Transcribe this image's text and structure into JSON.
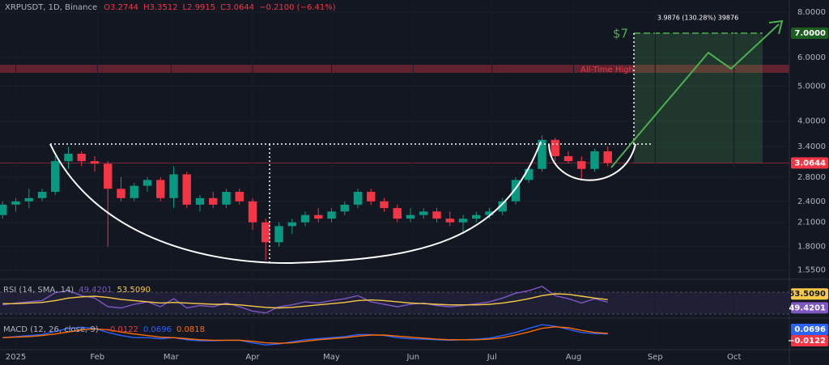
{
  "chart_data": [
    {
      "type": "candlestick",
      "title": "XRPUSDT, 1D, Binance",
      "ohlc_legend": [
        "O3.2744",
        "H3.3512",
        "L2.9915",
        "C3.0644",
        "−0.2100 (−6.41%)"
      ],
      "x": [
        -5,
        0,
        5,
        10,
        15,
        20,
        25,
        30,
        35,
        40,
        45,
        50,
        55,
        60,
        65,
        70,
        75,
        80,
        85,
        90,
        95,
        100,
        105,
        110,
        115,
        120,
        125,
        130,
        135,
        140,
        145,
        150,
        155,
        160,
        165,
        170,
        175,
        180,
        185,
        190,
        195,
        200,
        205,
        210,
        215,
        220,
        225
      ],
      "open": [
        2.2,
        2.35,
        2.4,
        2.45,
        2.55,
        3.1,
        3.25,
        3.1,
        3.05,
        2.6,
        2.45,
        2.65,
        2.75,
        2.45,
        2.85,
        2.35,
        2.45,
        2.35,
        2.55,
        2.4,
        2.1,
        1.85,
        2.05,
        2.1,
        2.2,
        2.15,
        2.25,
        2.35,
        2.55,
        2.4,
        2.3,
        2.15,
        2.2,
        2.25,
        2.15,
        2.1,
        2.15,
        2.2,
        2.25,
        2.4,
        2.75,
        2.95,
        3.55,
        3.2,
        3.1,
        2.95,
        3.3
      ],
      "high": [
        2.4,
        2.45,
        2.6,
        2.6,
        3.2,
        3.4,
        3.3,
        3.2,
        3.1,
        2.8,
        2.7,
        2.8,
        2.8,
        3.0,
        2.9,
        2.5,
        2.55,
        2.6,
        2.6,
        2.45,
        2.15,
        2.1,
        2.15,
        2.25,
        2.3,
        2.3,
        2.4,
        2.6,
        2.6,
        2.45,
        2.35,
        2.3,
        2.3,
        2.3,
        2.25,
        2.2,
        2.25,
        2.3,
        2.45,
        2.8,
        3.0,
        3.65,
        3.6,
        3.3,
        3.2,
        3.35,
        3.4
      ],
      "low": [
        2.15,
        2.25,
        2.3,
        2.4,
        2.5,
        2.95,
        3.0,
        2.9,
        1.8,
        2.4,
        2.4,
        2.55,
        2.4,
        2.3,
        2.3,
        2.25,
        2.3,
        2.3,
        2.35,
        2.0,
        1.65,
        1.8,
        1.95,
        2.05,
        2.1,
        2.1,
        2.2,
        2.3,
        2.35,
        2.25,
        2.1,
        2.1,
        2.15,
        2.1,
        2.05,
        1.95,
        2.1,
        2.15,
        2.2,
        2.35,
        2.7,
        2.9,
        3.1,
        3.05,
        2.75,
        2.9,
        3.0
      ],
      "close": [
        2.35,
        2.4,
        2.45,
        2.55,
        3.1,
        3.25,
        3.1,
        3.05,
        2.6,
        2.45,
        2.65,
        2.75,
        2.45,
        2.85,
        2.35,
        2.45,
        2.35,
        2.55,
        2.4,
        2.1,
        1.85,
        2.05,
        2.1,
        2.2,
        2.15,
        2.25,
        2.35,
        2.55,
        2.4,
        2.3,
        2.15,
        2.2,
        2.25,
        2.15,
        2.1,
        2.15,
        2.2,
        2.25,
        2.4,
        2.75,
        2.95,
        3.55,
        3.2,
        3.1,
        2.95,
        3.3,
        3.0644
      ],
      "up_color": "#089981",
      "down_color": "#f23645",
      "log_scale": true,
      "xlim": [
        -6,
        294
      ],
      "ylim": [
        1.5,
        8.3
      ],
      "yticks": [
        {
          "value": 8,
          "label": "8.0000"
        },
        {
          "value": 6,
          "label": "6.0000"
        },
        {
          "value": 5,
          "label": "5.0000"
        },
        {
          "value": 4,
          "label": "4.0000"
        },
        {
          "value": 3.4,
          "label": "3.4000"
        },
        {
          "value": 2.8,
          "label": "2.8000"
        },
        {
          "value": 2.4,
          "label": "2.4000"
        },
        {
          "value": 2.1,
          "label": "2.1000"
        },
        {
          "value": 1.8,
          "label": "1.8000"
        },
        {
          "value": 1.55,
          "label": "1.5500"
        }
      ],
      "last_price": {
        "value": 3.0644,
        "label": "3.0644"
      },
      "target": {
        "value": 7,
        "label": "7.0000"
      },
      "annotations": [
        "$7",
        "All-Time High",
        "3.9876 (130.28%) 39876"
      ]
    },
    {
      "type": "line",
      "title": "RSI (14, SMA, 14)",
      "series": [
        {
          "color": "#7e57c2",
          "last_label": "49.4201",
          "values": [
            45,
            48,
            50,
            52,
            65,
            68,
            60,
            56,
            42,
            40,
            46,
            50,
            42,
            55,
            40,
            44,
            42,
            48,
            42,
            35,
            32,
            42,
            45,
            50,
            48,
            52,
            55,
            60,
            50,
            46,
            42,
            46,
            48,
            44,
            42,
            44,
            47,
            50,
            56,
            64,
            68,
            75,
            60,
            55,
            48,
            55,
            49.4201
          ]
        },
        {
          "color": "#f7c948",
          "last_label": "53.5090",
          "values": [
            47,
            47,
            48,
            49,
            52,
            56,
            58,
            59,
            57,
            54,
            52,
            50,
            48,
            49,
            48,
            47,
            46,
            46,
            45,
            43,
            41,
            40,
            41,
            43,
            45,
            47,
            49,
            52,
            53,
            52,
            50,
            48,
            47,
            46,
            45,
            45,
            45,
            46,
            48,
            51,
            55,
            60,
            63,
            62,
            59,
            56,
            53.509
          ]
        }
      ],
      "ylim": [
        25,
        80
      ]
    },
    {
      "type": "line",
      "title": "MACD (12, 26, close, 9)",
      "histogram_label": "−0.0122",
      "series": [
        {
          "color": "#2962ff",
          "last_label": "0.0696",
          "values": [
            0,
            0.02,
            0.04,
            0.06,
            0.12,
            0.18,
            0.2,
            0.18,
            0.1,
            0.04,
            0,
            0,
            -0.02,
            0,
            -0.04,
            -0.06,
            -0.06,
            -0.05,
            -0.05,
            -0.1,
            -0.14,
            -0.12,
            -0.08,
            -0.04,
            -0.02,
            0,
            0.02,
            0.06,
            0.06,
            0.04,
            0,
            -0.02,
            -0.03,
            -0.04,
            -0.05,
            -0.04,
            -0.03,
            -0.01,
            0.04,
            0.1,
            0.18,
            0.25,
            0.22,
            0.16,
            0.1,
            0.08,
            0.0696
          ]
        },
        {
          "color": "#ff6d00",
          "last_label": "0.0818",
          "values": [
            0,
            0.01,
            0.02,
            0.04,
            0.07,
            0.11,
            0.15,
            0.17,
            0.15,
            0.11,
            0.07,
            0.04,
            0.01,
            0,
            -0.02,
            -0.04,
            -0.05,
            -0.05,
            -0.05,
            -0.07,
            -0.1,
            -0.11,
            -0.1,
            -0.07,
            -0.04,
            -0.02,
            0,
            0.03,
            0.05,
            0.05,
            0.03,
            0.01,
            -0.01,
            -0.03,
            -0.04,
            -0.04,
            -0.04,
            -0.03,
            0,
            0.05,
            0.11,
            0.18,
            0.21,
            0.19,
            0.14,
            0.1,
            0.0818
          ]
        }
      ],
      "ylim": [
        -0.2,
        0.3
      ],
      "xticks": [
        {
          "value": 0,
          "label": "2025"
        },
        {
          "value": 31,
          "label": "Feb"
        },
        {
          "value": 59,
          "label": "Mar"
        },
        {
          "value": 90,
          "label": "Apr"
        },
        {
          "value": 120,
          "label": "May"
        },
        {
          "value": 151,
          "label": "Jun"
        },
        {
          "value": 181,
          "label": "Jul"
        },
        {
          "value": 212,
          "label": "Aug"
        },
        {
          "value": 243,
          "label": "Sep"
        },
        {
          "value": 273,
          "label": "Oct"
        }
      ]
    }
  ]
}
